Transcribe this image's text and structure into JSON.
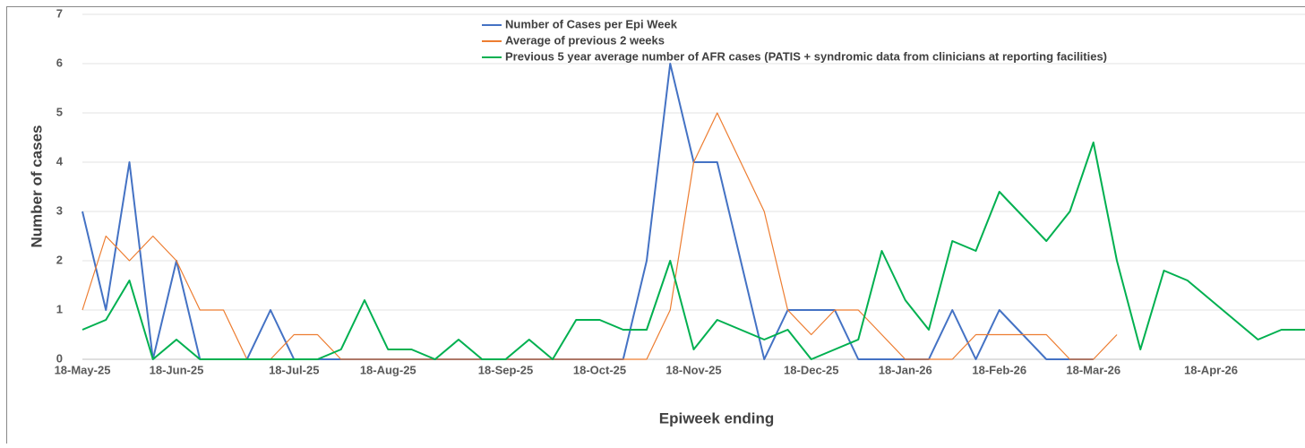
{
  "chart_data": {
    "type": "line",
    "x_label": "Epiweek ending",
    "y_label": "Number of cases",
    "categories": [
      "18-May-25",
      null,
      null,
      null,
      "18-Jun-25",
      null,
      null,
      null,
      null,
      "18-Jul-25",
      null,
      null,
      null,
      "18-Aug-25",
      null,
      null,
      null,
      null,
      "18-Sep-25",
      null,
      null,
      null,
      "18-Oct-25",
      null,
      null,
      null,
      "18-Nov-25",
      null,
      null,
      null,
      null,
      "18-Dec-25",
      null,
      null,
      null,
      "18-Jan-26",
      null,
      null,
      null,
      "18-Feb-26",
      null,
      null,
      null,
      "18-Mar-26",
      null,
      null,
      null,
      null,
      "18-Apr-26",
      null,
      null,
      null,
      null
    ],
    "series": [
      {
        "name": "Number of Cases per Epi Week",
        "color": "#4472c4",
        "width": 2,
        "values": [
          3,
          1,
          4,
          0,
          2,
          0,
          0,
          0,
          1,
          0,
          0,
          0,
          0,
          0,
          0,
          0,
          0,
          0,
          0,
          0,
          0,
          0,
          0,
          0,
          2,
          6,
          4,
          4,
          2,
          0,
          1,
          1,
          1,
          0,
          0,
          0,
          0,
          1,
          0,
          1,
          0.5,
          0,
          0,
          0,
          null,
          null,
          null,
          null,
          null,
          null,
          null,
          null,
          null
        ]
      },
      {
        "name": "Average of previous 2 weeks",
        "color": "#ed7d31",
        "width": 1.2,
        "values": [
          1,
          2.5,
          2,
          2.5,
          2,
          1,
          1,
          0,
          0,
          0.5,
          0.5,
          0,
          0,
          0,
          0,
          0,
          0,
          0,
          0,
          0,
          0,
          0,
          0,
          0,
          0,
          1,
          4,
          5,
          4,
          3,
          1,
          0.5,
          1,
          1,
          0.5,
          0,
          0,
          0,
          0.5,
          0.5,
          0.5,
          0.5,
          0,
          0,
          0.5,
          null,
          null,
          null,
          null,
          null,
          null,
          null,
          null
        ]
      },
      {
        "name": "Previous 5 year average number of AFR cases (PATIS + syndromic data from clinicians at reporting facilities)",
        "color": "#00b050",
        "width": 2,
        "values": [
          0.6,
          0.8,
          1.6,
          0,
          0.4,
          0,
          0,
          0,
          0,
          0,
          0,
          0.2,
          1.2,
          0.2,
          0.2,
          0,
          0.4,
          0,
          0,
          0.4,
          0,
          0.8,
          0.8,
          0.6,
          0.6,
          2,
          0.2,
          0.8,
          0.6,
          0.4,
          0.6,
          0,
          0.2,
          0.4,
          2.2,
          1.2,
          0.6,
          2.4,
          2.2,
          3.4,
          2.9,
          2.4,
          3,
          4.4,
          2,
          0.2,
          1.8,
          1.6,
          1.2,
          0.8,
          0.4,
          0.6,
          0.6
        ]
      }
    ],
    "ylim": [
      0,
      7
    ],
    "yticks": [
      0,
      1,
      2,
      3,
      4,
      5,
      6,
      7
    ],
    "grid": true
  }
}
